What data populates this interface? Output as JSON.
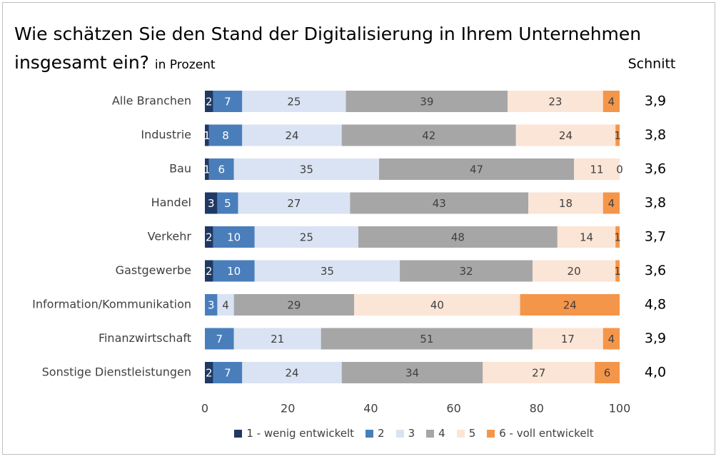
{
  "chart_data": {
    "type": "stacked-bar-horizontal",
    "title": "Wie schätzen Sie den Stand der Digitalisierung in Ihrem Unternehmen insgesamt ein?",
    "subtitle": "in Prozent",
    "categories": [
      "Alle Branchen",
      "Industrie",
      "Bau",
      "Handel",
      "Verkehr",
      "Gastgewerbe",
      "Information/Kommunikation",
      "Finanzwirtschaft",
      "Sonstige Dienstleistungen"
    ],
    "series": [
      {
        "name": "1 - wenig entwickelt",
        "color": "#1f3864",
        "values": [
          2,
          1,
          1,
          3,
          2,
          2,
          0,
          0,
          2
        ],
        "value_labels": [
          "2",
          "1",
          "1",
          "3",
          "2",
          "2",
          null,
          null,
          "2"
        ]
      },
      {
        "name": "2",
        "color": "#4a7ebb",
        "values": [
          7,
          8,
          6,
          5,
          10,
          10,
          3,
          7,
          7
        ]
      },
      {
        "name": "3",
        "color": "#dae3f3",
        "values": [
          25,
          24,
          35,
          27,
          25,
          35,
          4,
          21,
          24
        ]
      },
      {
        "name": "4",
        "color": "#a6a6a6",
        "values": [
          39,
          42,
          47,
          43,
          48,
          32,
          29,
          51,
          34
        ]
      },
      {
        "name": "5",
        "color": "#fbe5d6",
        "values": [
          23,
          24,
          11,
          18,
          14,
          20,
          40,
          17,
          27
        ]
      },
      {
        "name": "6 - voll entwickelt",
        "color": "#f4964a",
        "values": [
          4,
          1,
          0,
          4,
          1,
          1,
          24,
          4,
          6
        ]
      }
    ],
    "averages": {
      "label": "Schnitt",
      "values": [
        3.9,
        3.8,
        3.6,
        3.8,
        3.7,
        3.6,
        4.8,
        3.9,
        4.0
      ],
      "value_labels": [
        "3,9",
        "3,8",
        "3,6",
        "3,8",
        "3,7",
        "3,6",
        "4,8",
        "3,9",
        "4,0"
      ]
    },
    "xlim": [
      0,
      100
    ],
    "xticks": [
      0,
      20,
      40,
      60,
      80,
      100
    ],
    "grid": false
  }
}
